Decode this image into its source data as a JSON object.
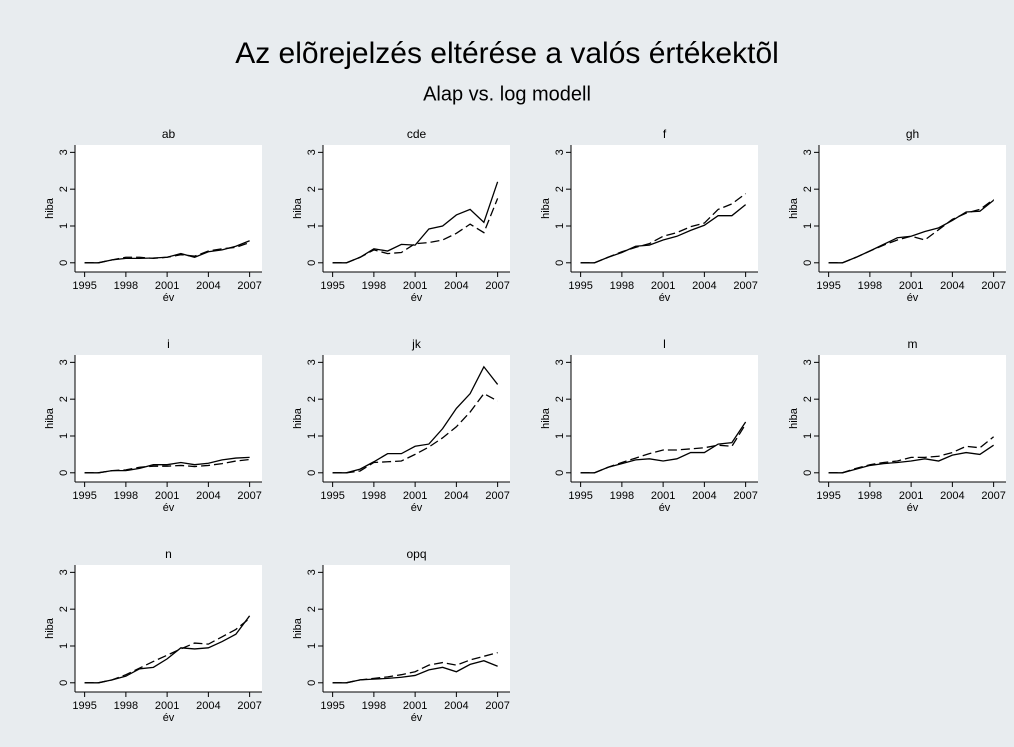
{
  "title": "Az elõrejelzés eltérése a valós értékektõl",
  "subtitle": "Alap vs. log modell",
  "chart_data": [
    {
      "type": "line",
      "title": "ab",
      "xlabel": "év",
      "ylabel": "hiba",
      "x": [
        1995,
        1996,
        1997,
        1998,
        1999,
        2000,
        2001,
        2002,
        2003,
        2004,
        2005,
        2006,
        2007
      ],
      "xlim": [
        1994.3,
        2007.9
      ],
      "xticks": [
        1995,
        1998,
        2001,
        2004,
        2007
      ],
      "ylim": [
        -0.25,
        3.2
      ],
      "yticks": [
        0,
        1,
        2,
        3
      ],
      "series": [
        {
          "color": "#000000",
          "style": "solid",
          "values": [
            0,
            0,
            0.08,
            0.12,
            0.12,
            0.13,
            0.15,
            0.25,
            0.15,
            0.3,
            0.35,
            0.45,
            0.6
          ]
        },
        {
          "color": "#000000",
          "style": "dashed",
          "values": [
            0,
            0,
            0.08,
            0.15,
            0.15,
            0.12,
            0.15,
            0.22,
            0.18,
            0.32,
            0.38,
            0.42,
            0.55
          ]
        }
      ]
    },
    {
      "type": "line",
      "title": "cde",
      "xlabel": "év",
      "ylabel": "hiba",
      "x": [
        1995,
        1996,
        1997,
        1998,
        1999,
        2000,
        2001,
        2002,
        2003,
        2004,
        2005,
        2006,
        2007
      ],
      "xlim": [
        1994.3,
        2007.9
      ],
      "xticks": [
        1995,
        1998,
        2001,
        2004,
        2007
      ],
      "ylim": [
        -0.25,
        3.2
      ],
      "yticks": [
        0,
        1,
        2,
        3
      ],
      "series": [
        {
          "color": "#000000",
          "style": "solid",
          "values": [
            0,
            0,
            0.15,
            0.38,
            0.32,
            0.5,
            0.48,
            0.92,
            1.0,
            1.3,
            1.45,
            1.1,
            2.2
          ]
        },
        {
          "color": "#000000",
          "style": "dashed",
          "values": [
            0,
            0,
            0.15,
            0.35,
            0.25,
            0.28,
            0.52,
            0.55,
            0.62,
            0.8,
            1.05,
            0.82,
            1.75
          ]
        }
      ]
    },
    {
      "type": "line",
      "title": "f",
      "xlabel": "év",
      "ylabel": "hiba",
      "x": [
        1995,
        1996,
        1997,
        1998,
        1999,
        2000,
        2001,
        2002,
        2003,
        2004,
        2005,
        2006,
        2007
      ],
      "xlim": [
        1994.3,
        2007.9
      ],
      "xticks": [
        1995,
        1998,
        2001,
        2004,
        2007
      ],
      "ylim": [
        -0.25,
        3.2
      ],
      "yticks": [
        0,
        1,
        2,
        3
      ],
      "series": [
        {
          "color": "#000000",
          "style": "solid",
          "values": [
            0,
            0,
            0.15,
            0.28,
            0.45,
            0.48,
            0.62,
            0.72,
            0.88,
            1.02,
            1.28,
            1.28,
            1.58
          ]
        },
        {
          "color": "#000000",
          "style": "dashed",
          "values": [
            0,
            0,
            0.15,
            0.3,
            0.42,
            0.52,
            0.72,
            0.82,
            0.98,
            1.08,
            1.45,
            1.6,
            1.88
          ]
        }
      ]
    },
    {
      "type": "line",
      "title": "gh",
      "xlabel": "év",
      "ylabel": "hiba",
      "x": [
        1995,
        1996,
        1997,
        1998,
        1999,
        2000,
        2001,
        2002,
        2003,
        2004,
        2005,
        2006,
        2007
      ],
      "xlim": [
        1994.3,
        2007.9
      ],
      "xticks": [
        1995,
        1998,
        2001,
        2004,
        2007
      ],
      "ylim": [
        -0.25,
        3.2
      ],
      "yticks": [
        0,
        1,
        2,
        3
      ],
      "series": [
        {
          "color": "#000000",
          "style": "solid",
          "values": [
            0,
            0,
            0.15,
            0.32,
            0.5,
            0.68,
            0.72,
            0.85,
            0.95,
            1.15,
            1.38,
            1.4,
            1.7
          ]
        },
        {
          "color": "#000000",
          "style": "dashed",
          "values": [
            0,
            0,
            0.15,
            0.32,
            0.48,
            0.62,
            0.72,
            0.62,
            0.9,
            1.18,
            1.35,
            1.45,
            1.72
          ]
        }
      ]
    },
    {
      "type": "line",
      "title": "i",
      "xlabel": "év",
      "ylabel": "hiba",
      "x": [
        1995,
        1996,
        1997,
        1998,
        1999,
        2000,
        2001,
        2002,
        2003,
        2004,
        2005,
        2006,
        2007
      ],
      "xlim": [
        1994.3,
        2007.9
      ],
      "xticks": [
        1995,
        1998,
        2001,
        2004,
        2007
      ],
      "ylim": [
        -0.25,
        3.2
      ],
      "yticks": [
        0,
        1,
        2,
        3
      ],
      "series": [
        {
          "color": "#000000",
          "style": "solid",
          "values": [
            0,
            0,
            0.06,
            0.06,
            0.12,
            0.22,
            0.22,
            0.28,
            0.22,
            0.26,
            0.35,
            0.4,
            0.42
          ]
        },
        {
          "color": "#000000",
          "style": "dashed",
          "values": [
            0,
            0,
            0.06,
            0.08,
            0.15,
            0.18,
            0.18,
            0.2,
            0.17,
            0.2,
            0.25,
            0.32,
            0.36
          ]
        }
      ]
    },
    {
      "type": "line",
      "title": "jk",
      "xlabel": "év",
      "ylabel": "hiba",
      "x": [
        1995,
        1996,
        1997,
        1998,
        1999,
        2000,
        2001,
        2002,
        2003,
        2004,
        2005,
        2006,
        2007
      ],
      "xlim": [
        1994.3,
        2007.9
      ],
      "xticks": [
        1995,
        1998,
        2001,
        2004,
        2007
      ],
      "ylim": [
        -0.25,
        3.2
      ],
      "yticks": [
        0,
        1,
        2,
        3
      ],
      "series": [
        {
          "color": "#000000",
          "style": "solid",
          "values": [
            0,
            0,
            0.1,
            0.3,
            0.52,
            0.52,
            0.72,
            0.78,
            1.2,
            1.75,
            2.15,
            2.88,
            2.4
          ]
        },
        {
          "color": "#000000",
          "style": "dashed",
          "values": [
            0,
            0,
            0.05,
            0.28,
            0.3,
            0.32,
            0.5,
            0.7,
            0.95,
            1.25,
            1.65,
            2.15,
            1.95
          ]
        }
      ]
    },
    {
      "type": "line",
      "title": "l",
      "xlabel": "év",
      "ylabel": "hiba",
      "x": [
        1995,
        1996,
        1997,
        1998,
        1999,
        2000,
        2001,
        2002,
        2003,
        2004,
        2005,
        2006,
        2007
      ],
      "xlim": [
        1994.3,
        2007.9
      ],
      "xticks": [
        1995,
        1998,
        2001,
        2004,
        2007
      ],
      "ylim": [
        -0.25,
        3.2
      ],
      "yticks": [
        0,
        1,
        2,
        3
      ],
      "series": [
        {
          "color": "#000000",
          "style": "solid",
          "values": [
            0,
            0,
            0.15,
            0.25,
            0.35,
            0.38,
            0.32,
            0.38,
            0.55,
            0.55,
            0.78,
            0.82,
            1.38
          ]
        },
        {
          "color": "#000000",
          "style": "dashed",
          "values": [
            0,
            0,
            0.15,
            0.28,
            0.4,
            0.52,
            0.62,
            0.62,
            0.65,
            0.68,
            0.75,
            0.72,
            1.32
          ]
        }
      ]
    },
    {
      "type": "line",
      "title": "m",
      "xlabel": "év",
      "ylabel": "hiba",
      "x": [
        1995,
        1996,
        1997,
        1998,
        1999,
        2000,
        2001,
        2002,
        2003,
        2004,
        2005,
        2006,
        2007
      ],
      "xlim": [
        1994.3,
        2007.9
      ],
      "xticks": [
        1995,
        1998,
        2001,
        2004,
        2007
      ],
      "ylim": [
        -0.25,
        3.2
      ],
      "yticks": [
        0,
        1,
        2,
        3
      ],
      "series": [
        {
          "color": "#000000",
          "style": "solid",
          "values": [
            0,
            0,
            0.1,
            0.2,
            0.25,
            0.28,
            0.32,
            0.38,
            0.32,
            0.48,
            0.55,
            0.5,
            0.75
          ]
        },
        {
          "color": "#000000",
          "style": "dashed",
          "values": [
            0,
            0,
            0.12,
            0.22,
            0.28,
            0.32,
            0.42,
            0.42,
            0.45,
            0.55,
            0.72,
            0.68,
            0.98
          ]
        }
      ]
    },
    {
      "type": "line",
      "title": "n",
      "xlabel": "év",
      "ylabel": "hiba",
      "x": [
        1995,
        1996,
        1997,
        1998,
        1999,
        2000,
        2001,
        2002,
        2003,
        2004,
        2005,
        2006,
        2007
      ],
      "xlim": [
        1994.3,
        2007.9
      ],
      "xticks": [
        1995,
        1998,
        2001,
        2004,
        2007
      ],
      "ylim": [
        -0.25,
        3.2
      ],
      "yticks": [
        0,
        1,
        2,
        3
      ],
      "series": [
        {
          "color": "#000000",
          "style": "solid",
          "values": [
            0,
            0,
            0.08,
            0.18,
            0.38,
            0.42,
            0.65,
            0.95,
            0.92,
            0.95,
            1.12,
            1.32,
            1.82
          ]
        },
        {
          "color": "#000000",
          "style": "dashed",
          "values": [
            0,
            0,
            0.08,
            0.22,
            0.4,
            0.58,
            0.75,
            0.92,
            1.08,
            1.05,
            1.25,
            1.45,
            1.75
          ]
        }
      ]
    },
    {
      "type": "line",
      "title": "opq",
      "xlabel": "év",
      "ylabel": "hiba",
      "x": [
        1995,
        1996,
        1997,
        1998,
        1999,
        2000,
        2001,
        2002,
        2003,
        2004,
        2005,
        2006,
        2007
      ],
      "xlim": [
        1994.3,
        2007.9
      ],
      "xticks": [
        1995,
        1998,
        2001,
        2004,
        2007
      ],
      "ylim": [
        -0.25,
        3.2
      ],
      "yticks": [
        0,
        1,
        2,
        3
      ],
      "series": [
        {
          "color": "#000000",
          "style": "solid",
          "values": [
            0,
            0,
            0.08,
            0.1,
            0.12,
            0.15,
            0.2,
            0.35,
            0.42,
            0.3,
            0.5,
            0.6,
            0.45
          ]
        },
        {
          "color": "#000000",
          "style": "dashed",
          "values": [
            0,
            0,
            0.08,
            0.12,
            0.16,
            0.22,
            0.3,
            0.48,
            0.55,
            0.48,
            0.62,
            0.72,
            0.82
          ]
        }
      ]
    }
  ]
}
